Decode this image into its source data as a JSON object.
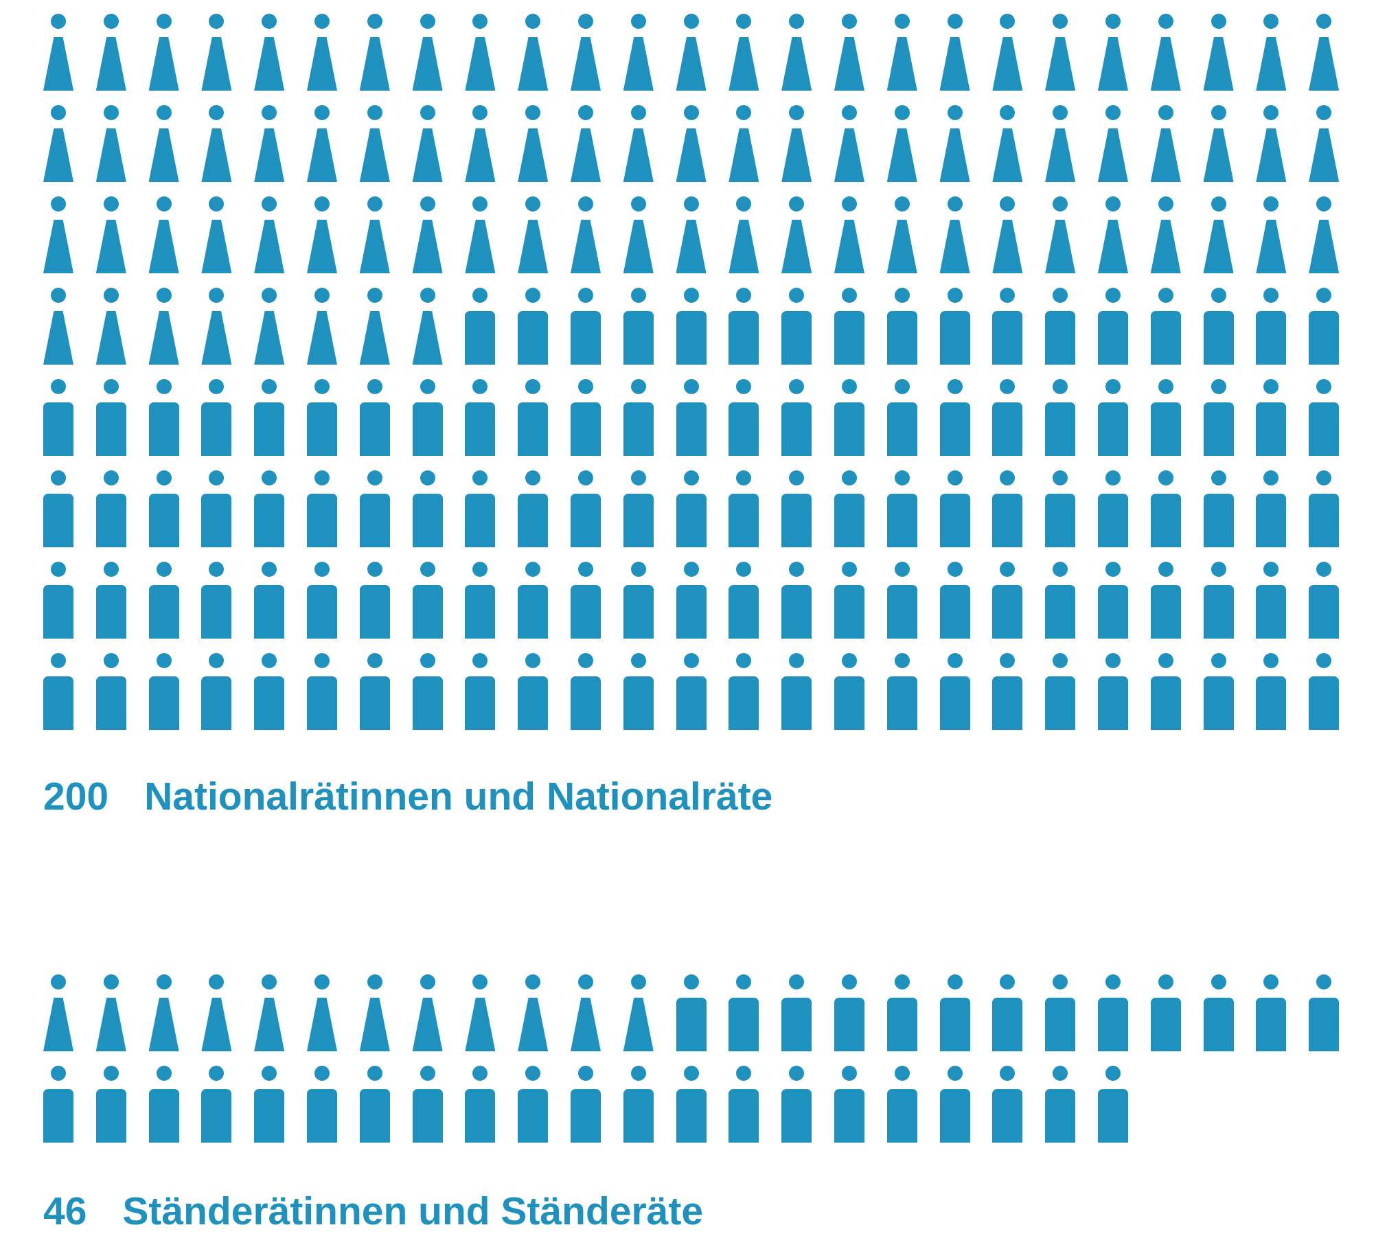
{
  "colors": {
    "figure": "#1e91be",
    "text": "#1e91be",
    "background": "#ffffff"
  },
  "icons": {
    "woman": "woman-figure-icon",
    "man": "man-figure-icon"
  },
  "national_council": {
    "count": "200",
    "label": "Nationalrätinnen und Nationalräte",
    "women": 83,
    "men": 117
  },
  "council_of_states": {
    "count": "46",
    "label": "Ständerätinnen und Ständeräte",
    "women": 12,
    "men": 34
  }
}
